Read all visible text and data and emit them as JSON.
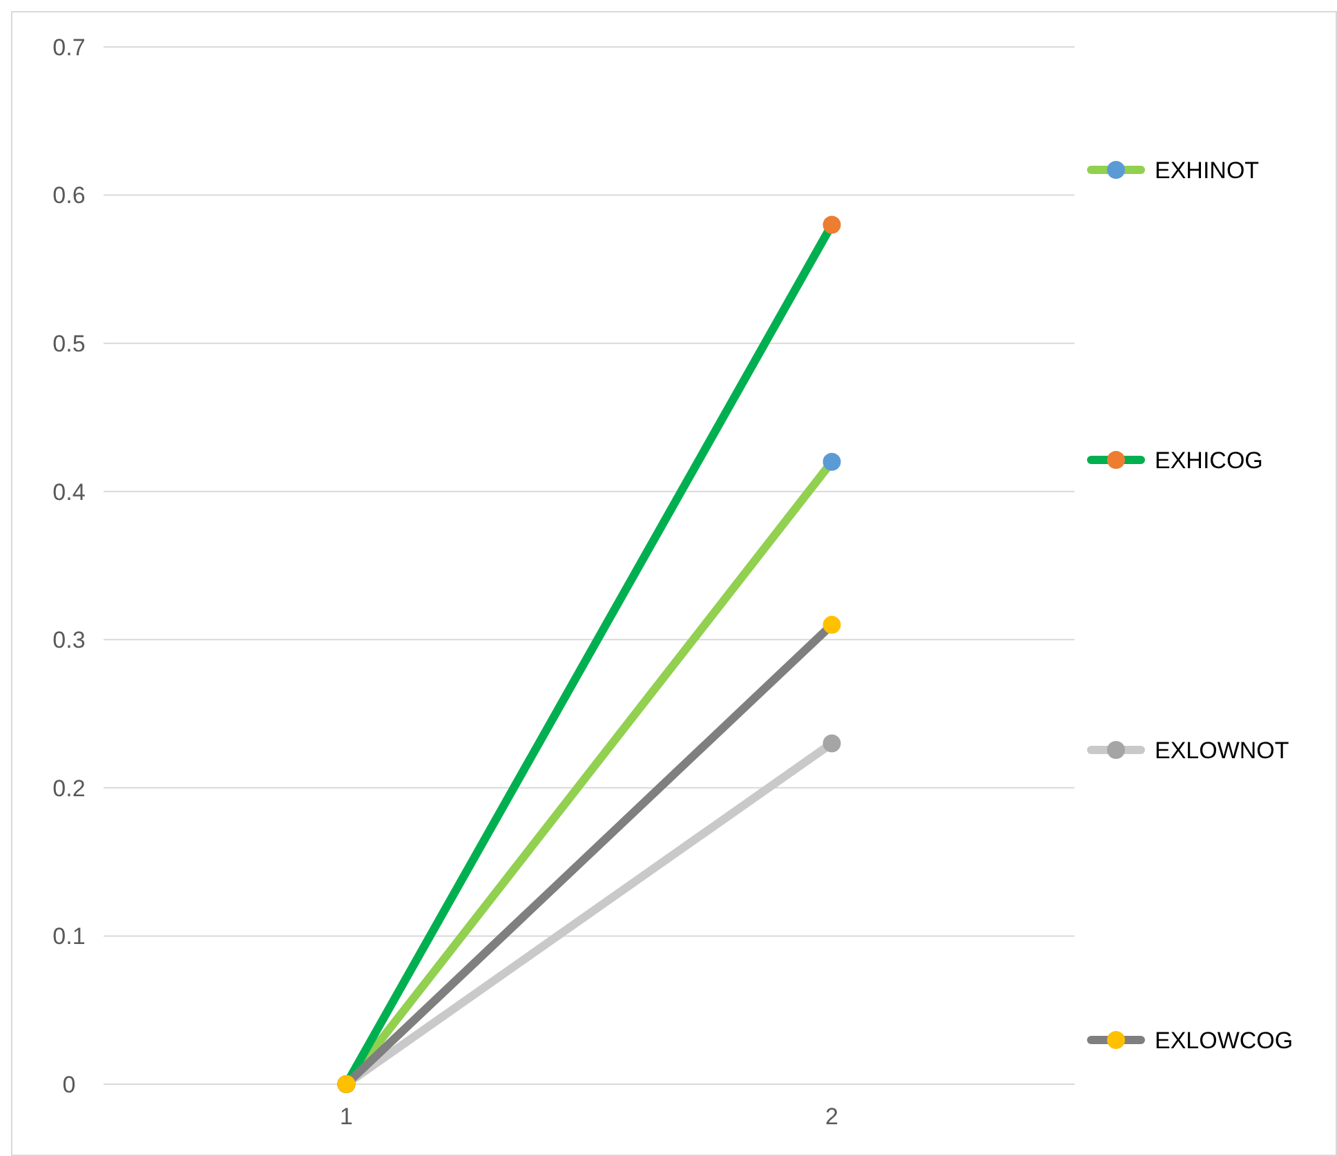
{
  "chart_data": {
    "type": "line",
    "categories": [
      "1",
      "2"
    ],
    "series": [
      {
        "name": "EXHINOT",
        "color": "#92d050",
        "colors": [
          "#5b9bd5",
          "#5b9bd5"
        ],
        "values": [
          0,
          0.42
        ]
      },
      {
        "name": "EXHICOG",
        "color": "#00b050",
        "colors": [
          "#ed7d31",
          "#ed7d31"
        ],
        "values": [
          0,
          0.58
        ]
      },
      {
        "name": "EXLOWNOT",
        "color": "#c9c9c9",
        "colors": [
          "#a5a5a5",
          "#a5a5a5"
        ],
        "values": [
          0,
          0.23
        ]
      },
      {
        "name": "EXLOWCOG",
        "color": "#7f7f7f",
        "colors": [
          "#ffc000",
          "#ffc000"
        ],
        "values": [
          0,
          0.31
        ]
      }
    ],
    "ylim": [
      0,
      0.7
    ],
    "yticks": [
      0,
      0.1,
      0.2,
      0.3,
      0.4,
      0.5,
      0.6,
      0.7
    ],
    "grid": "y",
    "legend": "right",
    "marker": "circle",
    "line_style": "solid"
  }
}
